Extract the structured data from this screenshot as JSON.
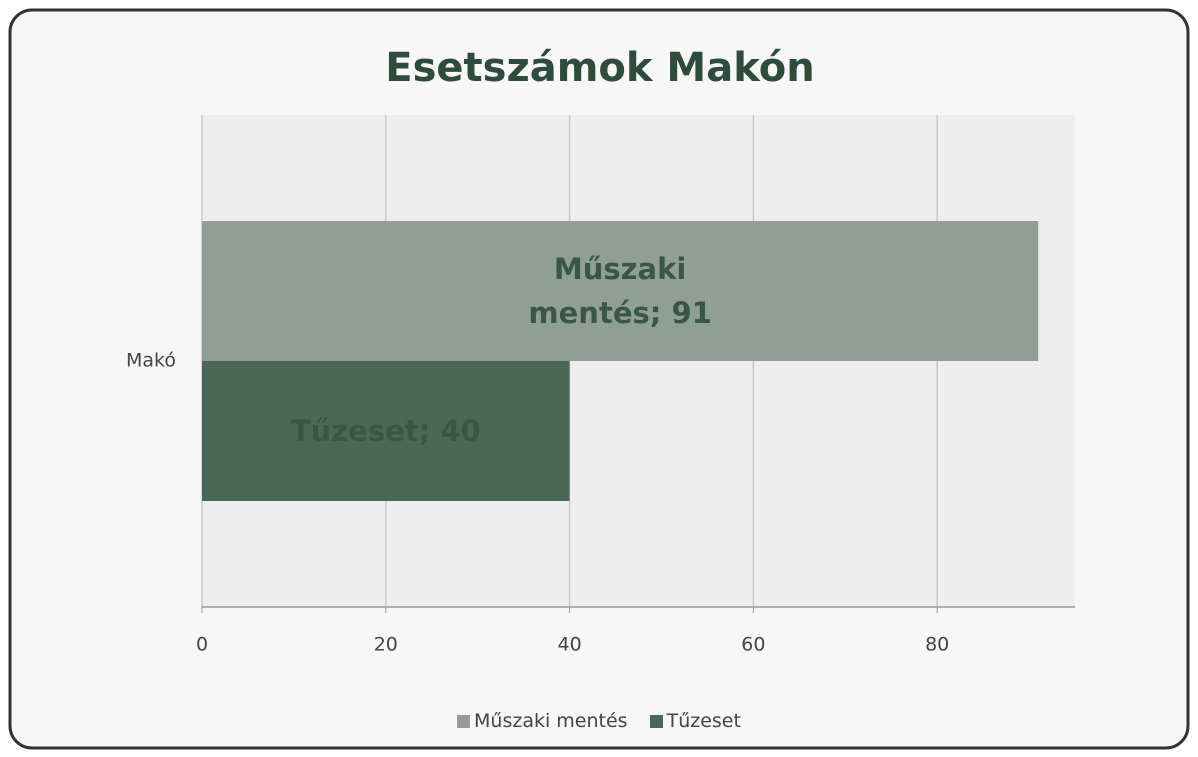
{
  "chart_data": {
    "type": "hbar",
    "title": "Esetszámok Makón",
    "categories": [
      "Makó"
    ],
    "series": [
      {
        "name": "Műszaki mentés",
        "color": "#909e95",
        "values": [
          91
        ],
        "value_labels": [
          "Műszaki mentés; 91"
        ]
      },
      {
        "name": "Tűzeset",
        "color": "#4b6757",
        "values": [
          40
        ],
        "value_labels": [
          "Tűzeset; 40"
        ]
      }
    ],
    "xlim": [
      0,
      95
    ],
    "xticks": [
      0,
      20,
      40,
      60,
      80
    ],
    "grid": true,
    "legend": "bottom"
  }
}
